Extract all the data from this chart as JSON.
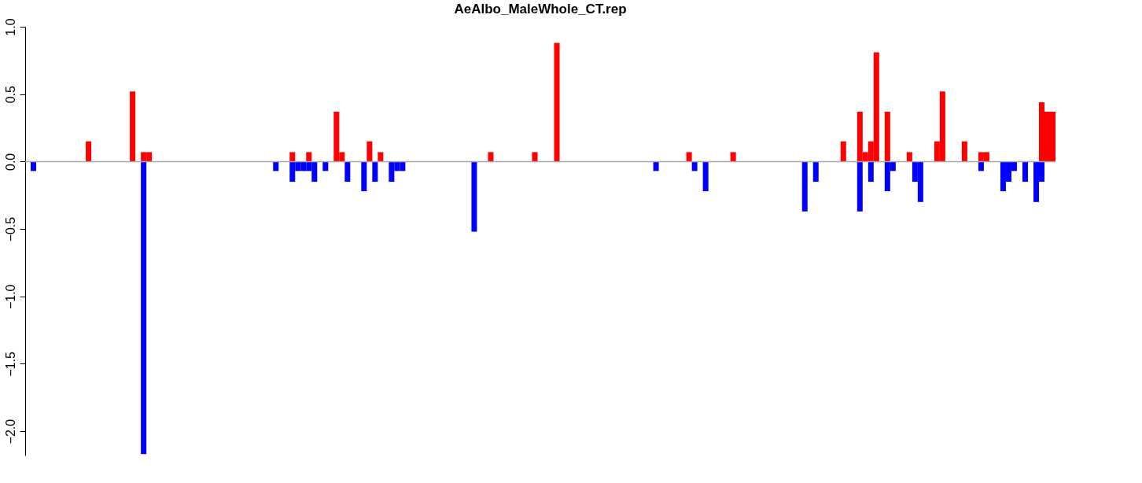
{
  "chart_data": {
    "type": "bar",
    "title": "AeAlbo_MaleWhole_CT.rep",
    "categories": [
      null,
      null,
      null,
      null,
      null,
      null,
      null,
      null,
      null,
      null,
      null,
      null,
      null,
      null,
      null,
      null,
      null,
      null,
      null,
      null,
      null,
      null,
      null,
      null,
      null,
      null,
      null,
      null,
      null,
      null,
      null,
      null,
      null,
      null,
      null,
      null,
      null,
      null,
      null,
      null,
      null,
      null,
      null,
      null,
      null,
      null,
      null,
      null,
      null,
      null,
      null,
      null,
      null,
      null,
      null,
      null,
      null,
      null,
      null,
      null,
      null,
      null,
      null,
      null,
      null,
      null,
      null,
      null,
      null,
      null,
      null,
      null,
      null,
      null,
      null,
      null,
      null,
      null,
      null,
      null,
      null,
      null,
      null,
      null,
      null,
      null,
      null,
      null,
      null,
      null,
      null,
      null,
      null,
      null,
      null,
      null,
      null,
      null,
      null,
      null,
      null,
      null,
      null,
      null,
      null,
      null,
      null,
      null,
      null,
      null,
      null,
      null,
      null,
      null,
      null,
      null,
      null,
      null,
      null,
      null,
      null,
      null,
      null,
      null,
      null,
      null,
      null,
      null,
      null,
      null,
      null,
      null,
      null,
      null,
      null,
      null,
      null,
      null,
      null,
      null,
      null,
      null,
      null,
      null,
      null,
      null,
      null,
      null,
      null,
      null,
      null,
      null,
      null,
      null,
      null,
      null,
      null,
      null,
      null,
      null,
      null,
      null,
      null,
      null,
      null,
      null,
      null,
      null,
      null,
      null,
      null,
      null,
      null,
      null,
      null,
      null,
      null,
      null,
      null,
      null,
      null,
      null,
      null,
      null,
      null,
      null,
      null
    ],
    "series": [
      {
        "color": "#ff0000",
        "values": [
          null,
          null,
          null,
          null,
          null,
          null,
          null,
          null,
          null,
          null,
          null,
          0.15,
          null,
          null,
          null,
          null,
          null,
          null,
          null,
          0.52,
          null,
          0.07,
          0.07,
          null,
          null,
          null,
          null,
          null,
          null,
          null,
          null,
          null,
          null,
          null,
          null,
          null,
          null,
          null,
          null,
          null,
          null,
          null,
          null,
          null,
          null,
          null,
          null,
          null,
          0.07,
          null,
          null,
          0.07,
          null,
          null,
          null,
          null,
          0.37,
          0.07,
          null,
          null,
          null,
          null,
          0.15,
          null,
          0.07,
          null,
          null,
          null,
          null,
          null,
          null,
          null,
          null,
          null,
          null,
          null,
          null,
          null,
          null,
          null,
          null,
          null,
          null,
          null,
          0.07,
          null,
          null,
          null,
          null,
          null,
          null,
          null,
          0.07,
          null,
          null,
          null,
          0.88,
          null,
          null,
          null,
          null,
          null,
          null,
          null,
          null,
          null,
          null,
          null,
          null,
          null,
          null,
          null,
          null,
          null,
          null,
          null,
          null,
          null,
          null,
          null,
          0.07,
          null,
          null,
          null,
          null,
          null,
          null,
          null,
          0.07,
          null,
          null,
          null,
          null,
          null,
          null,
          null,
          null,
          null,
          null,
          null,
          null,
          null,
          null,
          null,
          null,
          null,
          null,
          null,
          0.15,
          null,
          null,
          0.37,
          0.07,
          0.15,
          0.81,
          null,
          0.37,
          null,
          null,
          null,
          0.07,
          null,
          null,
          null,
          null,
          0.15,
          0.52,
          null,
          null,
          null,
          0.15,
          null,
          null,
          0.07,
          0.07,
          null,
          null,
          null,
          null,
          null,
          null,
          null,
          null,
          null,
          0.44,
          0.37,
          0.37
        ]
      },
      {
        "color": "#0000ff",
        "values": [
          null,
          -0.07,
          null,
          null,
          null,
          null,
          null,
          null,
          null,
          null,
          null,
          null,
          null,
          null,
          null,
          null,
          null,
          null,
          null,
          null,
          null,
          -2.17,
          null,
          null,
          null,
          null,
          null,
          null,
          null,
          null,
          null,
          null,
          null,
          null,
          null,
          null,
          null,
          null,
          null,
          null,
          null,
          null,
          null,
          null,
          null,
          -0.07,
          null,
          null,
          -0.15,
          -0.07,
          -0.07,
          -0.07,
          -0.15,
          null,
          -0.07,
          null,
          null,
          null,
          -0.15,
          null,
          null,
          -0.22,
          null,
          -0.15,
          null,
          null,
          -0.15,
          -0.07,
          -0.07,
          null,
          null,
          null,
          null,
          null,
          null,
          null,
          null,
          null,
          null,
          null,
          null,
          -0.52,
          null,
          null,
          null,
          null,
          null,
          null,
          null,
          null,
          null,
          null,
          null,
          null,
          null,
          null,
          null,
          null,
          null,
          null,
          null,
          null,
          null,
          null,
          null,
          null,
          null,
          null,
          null,
          null,
          null,
          null,
          null,
          null,
          -0.07,
          null,
          null,
          null,
          null,
          null,
          null,
          -0.07,
          null,
          -0.22,
          null,
          null,
          null,
          null,
          null,
          null,
          null,
          null,
          null,
          null,
          null,
          null,
          null,
          null,
          null,
          null,
          null,
          -0.37,
          null,
          -0.15,
          null,
          null,
          null,
          null,
          null,
          null,
          null,
          -0.37,
          null,
          -0.15,
          null,
          null,
          -0.22,
          -0.07,
          null,
          null,
          null,
          -0.15,
          -0.3,
          null,
          null,
          null,
          null,
          null,
          null,
          null,
          null,
          null,
          null,
          -0.07,
          null,
          null,
          null,
          -0.22,
          -0.15,
          -0.07,
          null,
          -0.15,
          null,
          -0.3,
          -0.15,
          null,
          null
        ]
      }
    ],
    "ylim": [
      -2.18,
      1.0
    ],
    "yticks": [
      {
        "value": 1,
        "label": "1.0"
      },
      {
        "value": 0.5,
        "label": "0.5"
      },
      {
        "value": 0,
        "label": "0.0"
      },
      {
        "value": -0.5,
        "label": "−0.5"
      },
      {
        "value": -1,
        "label": "−1.0"
      },
      {
        "value": -1.5,
        "label": "−1.5"
      },
      {
        "value": -2,
        "label": "−2.0"
      }
    ],
    "ref_lines": [
      {
        "axis": "y",
        "value": 0,
        "color": "#a6a6a6"
      }
    ],
    "tick_labels": "y",
    "grid": false,
    "legend": false
  }
}
